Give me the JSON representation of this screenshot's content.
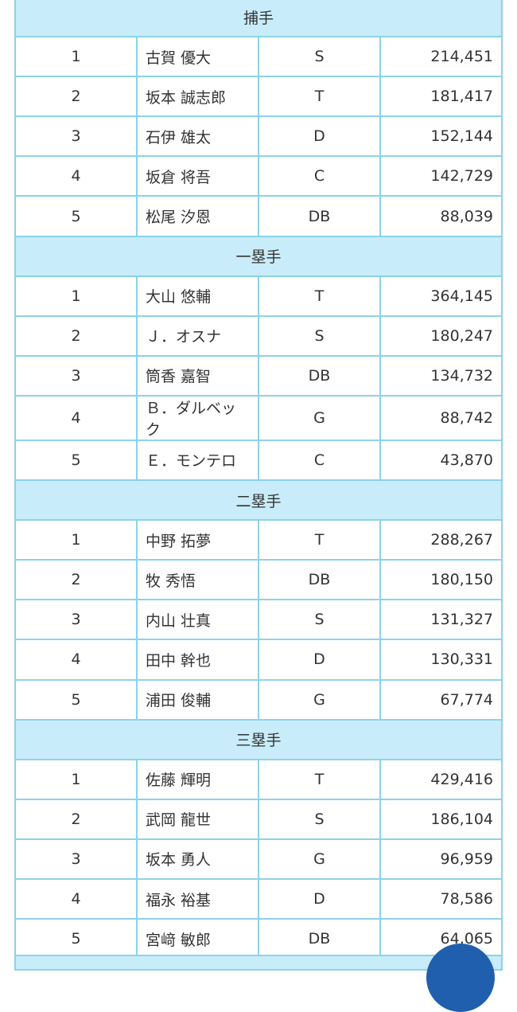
{
  "sections": [
    {
      "title": "捕手",
      "rows": [
        [
          "1",
          "古賀 優大",
          "S",
          "214,451"
        ],
        [
          "2",
          "坂本 誠志郎",
          "T",
          "181,417"
        ],
        [
          "3",
          "石伊 雄太",
          "D",
          "152,144"
        ],
        [
          "4",
          "坂倉 将吾",
          "C",
          "142,729"
        ],
        [
          "5",
          "松尾 汐恩",
          "DB",
          "88,039"
        ]
      ]
    },
    {
      "title": "一塁手",
      "rows": [
        [
          "1",
          "大山 悠輔",
          "T",
          "364,145"
        ],
        [
          "2",
          "Ｊ．オスナ",
          "S",
          "180,247"
        ],
        [
          "3",
          "筒香 嘉智",
          "DB",
          "134,732"
        ],
        [
          "4",
          "Ｂ．ダルベック",
          "G",
          "88,742"
        ],
        [
          "5",
          "Ｅ．モンテロ",
          "C",
          "43,870"
        ]
      ]
    },
    {
      "title": "二塁手",
      "rows": [
        [
          "1",
          "中野 拓夢",
          "T",
          "288,267"
        ],
        [
          "2",
          "牧 秀悟",
          "DB",
          "180,150"
        ],
        [
          "3",
          "内山 壮真",
          "S",
          "131,327"
        ],
        [
          "4",
          "田中 幹也",
          "D",
          "130,331"
        ],
        [
          "5",
          "浦田 俊輔",
          "G",
          "67,774"
        ]
      ]
    },
    {
      "title": "三塁手",
      "rows": [
        [
          "1",
          "佐藤 輝明",
          "T",
          "429,416"
        ],
        [
          "2",
          "武岡 龍世",
          "S",
          "186,104"
        ],
        [
          "3",
          "坂本 勇人",
          "G",
          "96,959"
        ],
        [
          "4",
          "福永 裕基",
          "D",
          "78,586"
        ],
        [
          "5",
          "宮﨑 敏郎",
          "DB",
          "64,065"
        ]
      ]
    }
  ]
}
